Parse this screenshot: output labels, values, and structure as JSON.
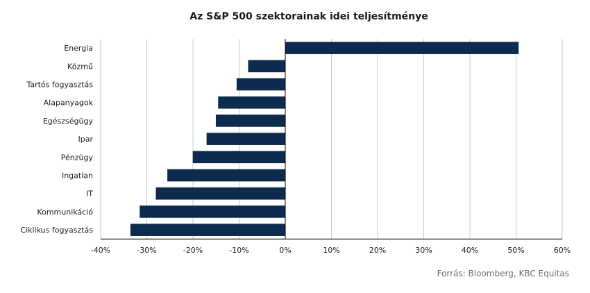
{
  "chart_data": {
    "type": "bar",
    "orientation": "horizontal",
    "title": "Az S&P 500 szektorainak idei teljesítménye",
    "xlabel": "",
    "ylabel": "",
    "categories": [
      "Energia",
      "Közmű",
      "Tartós fogyasztás",
      "Alapanyagok",
      "Egészségügy",
      "Ipar",
      "Pénzügy",
      "Ingatlan",
      "IT",
      "Kommunikáció",
      "Ciklikus fogyasztás"
    ],
    "values": [
      50.5,
      -8,
      -10.5,
      -14.5,
      -15,
      -17,
      -20,
      -25.5,
      -28,
      -31.5,
      -33.5
    ],
    "xlim": [
      -40,
      60
    ],
    "x_ticks": [
      "-40%",
      "-30%",
      "-20%",
      "-10%",
      "0%",
      "10%",
      "20%",
      "30%",
      "40%",
      "50%",
      "60%"
    ],
    "grid": "vertical",
    "legend": "none",
    "bar_color": "#0d2a4f"
  },
  "source": "Forrás: Bloomberg, KBC Equitas"
}
